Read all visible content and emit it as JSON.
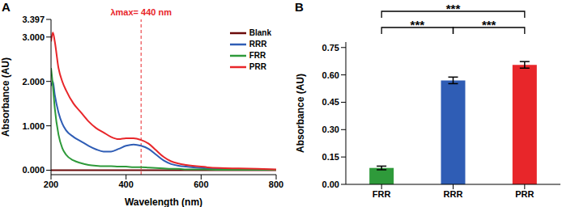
{
  "chart_data": [
    {
      "type": "line",
      "title": "A",
      "x_label": "Wavelength (nm)",
      "y_label": "Absorbance (AU)",
      "x": [
        200,
        205,
        210,
        220,
        230,
        240,
        260,
        280,
        300,
        320,
        340,
        360,
        380,
        400,
        420,
        440,
        460,
        480,
        500,
        520,
        540,
        560,
        600,
        650,
        700,
        750,
        800
      ],
      "series": [
        {
          "name": "Blank",
          "color": "#6b0a0a",
          "values": [
            0,
            0,
            0,
            0,
            0,
            0,
            0,
            0,
            0,
            0,
            0,
            0,
            0,
            0,
            0,
            0,
            0,
            0,
            0,
            0,
            0,
            0,
            0,
            0,
            0,
            0,
            0
          ]
        },
        {
          "name": "RRR",
          "color": "#2f5db5",
          "values": [
            1.9,
            2.0,
            1.7,
            1.3,
            1.05,
            0.9,
            0.75,
            0.65,
            0.55,
            0.47,
            0.42,
            0.42,
            0.48,
            0.55,
            0.58,
            0.55,
            0.48,
            0.35,
            0.22,
            0.14,
            0.1,
            0.08,
            0.05,
            0.03,
            0.02,
            0.02,
            0.01
          ]
        },
        {
          "name": "FRR",
          "color": "#2e9a3a",
          "values": [
            2.3,
            1.9,
            1.4,
            0.8,
            0.5,
            0.35,
            0.22,
            0.16,
            0.12,
            0.1,
            0.09,
            0.09,
            0.08,
            0.08,
            0.07,
            0.07,
            0.06,
            0.05,
            0.04,
            0.03,
            0.03,
            0.02,
            0.02,
            0.01,
            0.01,
            0.01,
            0.01
          ]
        },
        {
          "name": "PRR",
          "color": "#e8262a",
          "values": [
            2.9,
            3.1,
            2.9,
            2.3,
            2.0,
            1.8,
            1.5,
            1.3,
            1.1,
            0.95,
            0.85,
            0.75,
            0.7,
            0.72,
            0.72,
            0.68,
            0.6,
            0.45,
            0.3,
            0.2,
            0.15,
            0.12,
            0.08,
            0.05,
            0.04,
            0.03,
            0.02
          ]
        }
      ],
      "xlim": [
        200,
        800
      ],
      "xticks": [
        200,
        400,
        600,
        800
      ],
      "ylim": [
        -0.1,
        3.397
      ],
      "yticks": [
        {
          "value": 0,
          "label": "0.000"
        },
        {
          "value": 1,
          "label": "1.000"
        },
        {
          "value": 2,
          "label": "2.000"
        },
        {
          "value": 3,
          "label": "3.000"
        },
        {
          "value": 3.397,
          "label": "3.397"
        }
      ],
      "legend": "upper right",
      "annotations": [
        {
          "x": 440,
          "label": "λmax= 440 nm",
          "color": "#e8262a",
          "line_style": "dashed"
        }
      ]
    },
    {
      "type": "bar",
      "title": "B",
      "y_label": "Absorbance (AU)",
      "categories": [
        "FRR",
        "RRR",
        "PRR"
      ],
      "values": [
        0.09,
        0.57,
        0.655
      ],
      "errors": [
        0.01,
        0.018,
        0.018
      ],
      "colors": [
        "#2e9a3a",
        "#2f5db5",
        "#e8262a"
      ],
      "ylim": [
        0,
        0.78
      ],
      "yticks": [
        {
          "value": 0,
          "label": "0.00"
        },
        {
          "value": 0.15,
          "label": "0.15"
        },
        {
          "value": 0.3,
          "label": "0.30"
        },
        {
          "value": 0.45,
          "label": "0.45"
        },
        {
          "value": 0.6,
          "label": "0.60"
        },
        {
          "value": 0.75,
          "label": "0.75"
        }
      ],
      "significance": [
        {
          "from": "FRR",
          "to": "RRR",
          "label": "***"
        },
        {
          "from": "RRR",
          "to": "PRR",
          "label": "***"
        },
        {
          "from": "FRR",
          "to": "PRR",
          "label": "***"
        }
      ]
    }
  ]
}
